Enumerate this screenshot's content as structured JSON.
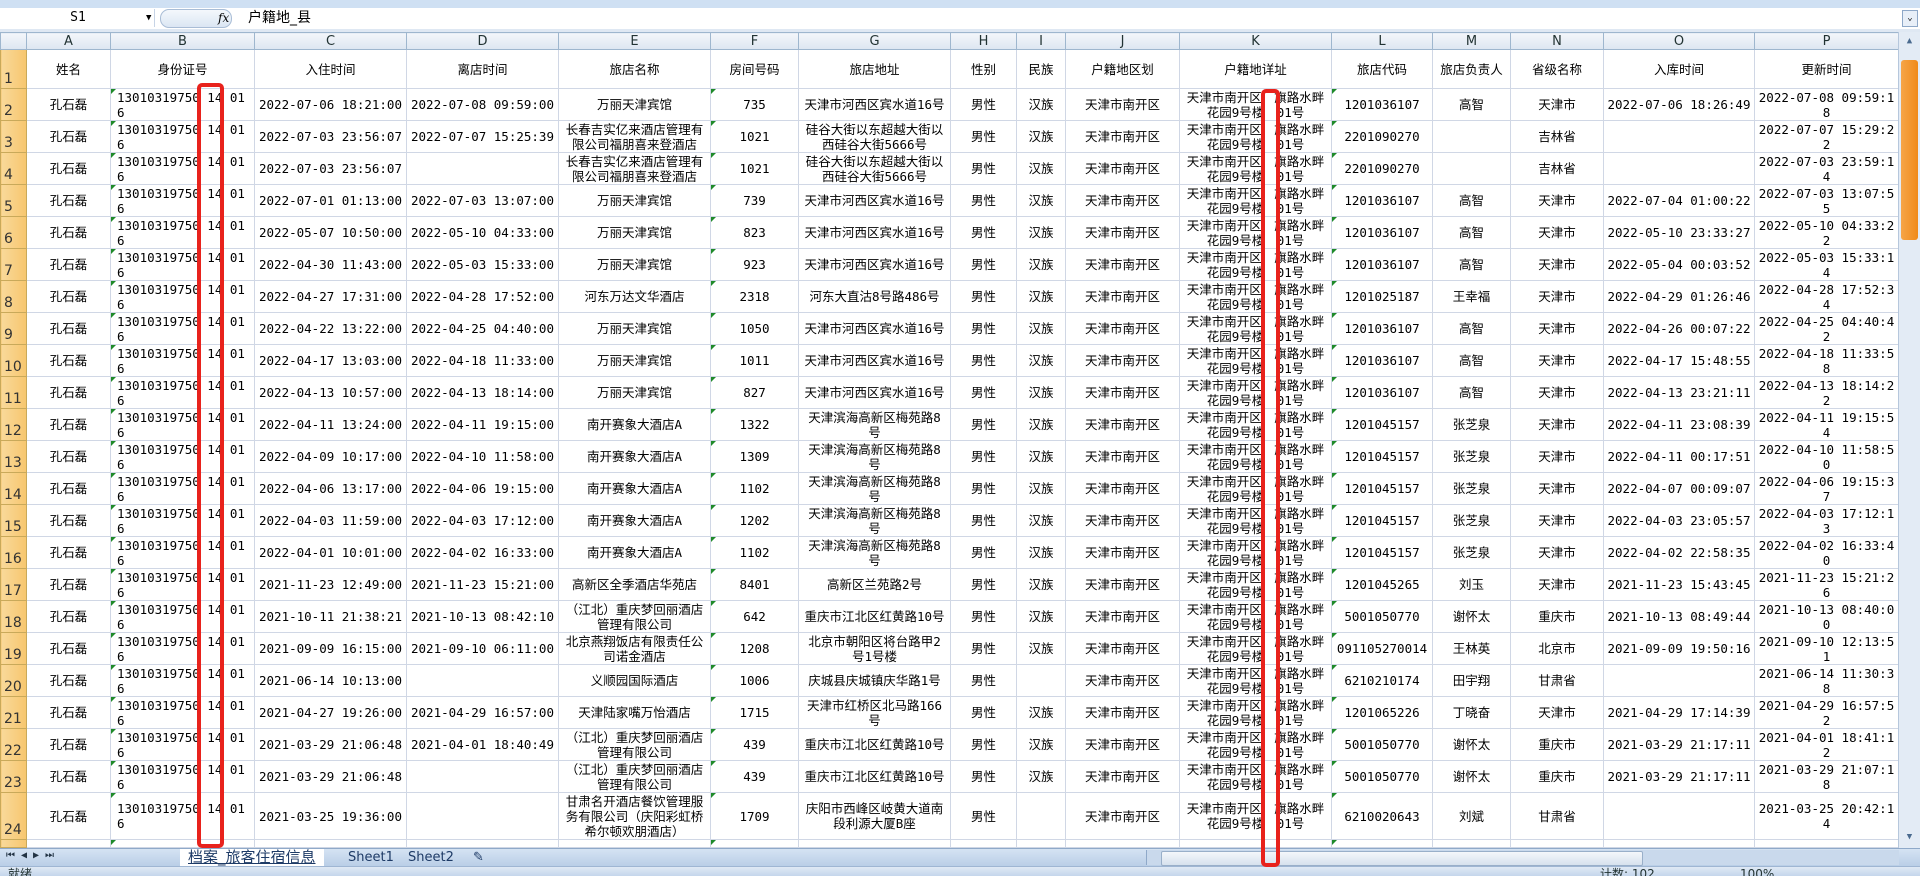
{
  "formula_bar": {
    "name_box": "S1",
    "fx": "fx",
    "formula": "户籍地_县"
  },
  "columns": [
    "A",
    "B",
    "C",
    "D",
    "E",
    "F",
    "G",
    "H",
    "I",
    "J",
    "K",
    "L",
    "M",
    "N",
    "O",
    "P"
  ],
  "headers": [
    "姓名",
    "身份证号",
    "入住时间",
    "离店时间",
    "旅店名称",
    "房间号码",
    "旅店地址",
    "性别",
    "民族",
    "户籍地区划",
    "户籍地详址",
    "旅店代码",
    "旅店负责人",
    "省级名称",
    "入库时间",
    "更新时间"
  ],
  "rows": [
    [
      "孔石磊",
      "13010319750 14 016",
      "2022-07-06 18:21:00",
      "2022-07-08 09:59:00",
      "万丽天津宾馆",
      "735",
      "天津市河西区宾水道16号",
      "男性",
      "汉族",
      "天津市南开区",
      "天津市南开区　旗路水畔花园9号楼　01号",
      "1201036107",
      "高智",
      "天津市",
      "2022-07-06 18:26:49",
      "2022-07-08 09:59:18"
    ],
    [
      "孔石磊",
      "13010319750 14 016",
      "2022-07-03 23:56:07",
      "2022-07-07 15:25:39",
      "长春吉实亿来酒店管理有限公司福朋喜来登酒店",
      "1021",
      "硅谷大街以东超越大街以西硅谷大街5666号",
      "男性",
      "汉族",
      "天津市南开区",
      "天津市南开区　旗路水畔花园9号楼　01号",
      "2201090270",
      "",
      "吉林省",
      "",
      "2022-07-07 15:29:22"
    ],
    [
      "孔石磊",
      "13010319750 14 016",
      "2022-07-03 23:56:07",
      "",
      "长春吉实亿来酒店管理有限公司福朋喜来登酒店",
      "1021",
      "硅谷大街以东超越大街以西硅谷大街5666号",
      "男性",
      "汉族",
      "天津市南开区",
      "天津市南开区　旗路水畔花园9号楼　01号",
      "2201090270",
      "",
      "吉林省",
      "",
      "2022-07-03 23:59:14"
    ],
    [
      "孔石磊",
      "13010319750 14 016",
      "2022-07-01 01:13:00",
      "2022-07-03 13:07:00",
      "万丽天津宾馆",
      "739",
      "天津市河西区宾水道16号",
      "男性",
      "汉族",
      "天津市南开区",
      "天津市南开区　旗路水畔花园9号楼　01号",
      "1201036107",
      "高智",
      "天津市",
      "2022-07-04 01:00:22",
      "2022-07-03 13:07:55"
    ],
    [
      "孔石磊",
      "13010319750 14 016",
      "2022-05-07 10:50:00",
      "2022-05-10 04:33:00",
      "万丽天津宾馆",
      "823",
      "天津市河西区宾水道16号",
      "男性",
      "汉族",
      "天津市南开区",
      "天津市南开区　旗路水畔花园9号楼　01号",
      "1201036107",
      "高智",
      "天津市",
      "2022-05-10 23:33:27",
      "2022-05-10 04:33:22"
    ],
    [
      "孔石磊",
      "13010319750 14 016",
      "2022-04-30 11:43:00",
      "2022-05-03 15:33:00",
      "万丽天津宾馆",
      "923",
      "天津市河西区宾水道16号",
      "男性",
      "汉族",
      "天津市南开区",
      "天津市南开区　旗路水畔花园9号楼　01号",
      "1201036107",
      "高智",
      "天津市",
      "2022-05-04 00:03:52",
      "2022-05-03 15:33:14"
    ],
    [
      "孔石磊",
      "13010319750 14 016",
      "2022-04-27 17:31:00",
      "2022-04-28 17:52:00",
      "河东万达文华酒店",
      "2318",
      "河东大直沽8号路486号",
      "男性",
      "汉族",
      "天津市南开区",
      "天津市南开区　旗路水畔花园9号楼　01号",
      "1201025187",
      "王幸福",
      "天津市",
      "2022-04-29 01:26:46",
      "2022-04-28 17:52:34"
    ],
    [
      "孔石磊",
      "13010319750 14 016",
      "2022-04-22 13:22:00",
      "2022-04-25 04:40:00",
      "万丽天津宾馆",
      "1050",
      "天津市河西区宾水道16号",
      "男性",
      "汉族",
      "天津市南开区",
      "天津市南开区　旗路水畔花园9号楼　01号",
      "1201036107",
      "高智",
      "天津市",
      "2022-04-26 00:07:22",
      "2022-04-25 04:40:42"
    ],
    [
      "孔石磊",
      "13010319750 14 016",
      "2022-04-17 13:03:00",
      "2022-04-18 11:33:00",
      "万丽天津宾馆",
      "1011",
      "天津市河西区宾水道16号",
      "男性",
      "汉族",
      "天津市南开区",
      "天津市南开区　旗路水畔花园9号楼　01号",
      "1201036107",
      "高智",
      "天津市",
      "2022-04-17 15:48:55",
      "2022-04-18 11:33:58"
    ],
    [
      "孔石磊",
      "13010319750 14 016",
      "2022-04-13 10:57:00",
      "2022-04-13 18:14:00",
      "万丽天津宾馆",
      "827",
      "天津市河西区宾水道16号",
      "男性",
      "汉族",
      "天津市南开区",
      "天津市南开区　旗路水畔花园9号楼　01号",
      "1201036107",
      "高智",
      "天津市",
      "2022-04-13 23:21:11",
      "2022-04-13 18:14:22"
    ],
    [
      "孔石磊",
      "13010319750 14 016",
      "2022-04-11 13:24:00",
      "2022-04-11 19:15:00",
      "南开赛象大酒店A",
      "1322",
      "天津滨海高新区梅苑路8号",
      "男性",
      "汉族",
      "天津市南开区",
      "天津市南开区　旗路水畔花园9号楼　01号",
      "1201045157",
      "张芝泉",
      "天津市",
      "2022-04-11 23:08:39",
      "2022-04-11 19:15:54"
    ],
    [
      "孔石磊",
      "13010319750 14 016",
      "2022-04-09 10:17:00",
      "2022-04-10 11:58:00",
      "南开赛象大酒店A",
      "1309",
      "天津滨海高新区梅苑路8号",
      "男性",
      "汉族",
      "天津市南开区",
      "天津市南开区　旗路水畔花园9号楼　01号",
      "1201045157",
      "张芝泉",
      "天津市",
      "2022-04-11 00:17:51",
      "2022-04-10 11:58:50"
    ],
    [
      "孔石磊",
      "13010319750 14 016",
      "2022-04-06 13:17:00",
      "2022-04-06 19:15:00",
      "南开赛象大酒店A",
      "1102",
      "天津滨海高新区梅苑路8号",
      "男性",
      "汉族",
      "天津市南开区",
      "天津市南开区　旗路水畔花园9号楼　01号",
      "1201045157",
      "张芝泉",
      "天津市",
      "2022-04-07 00:09:07",
      "2022-04-06 19:15:37"
    ],
    [
      "孔石磊",
      "13010319750 14 016",
      "2022-04-03 11:59:00",
      "2022-04-03 17:12:00",
      "南开赛象大酒店A",
      "1202",
      "天津滨海高新区梅苑路8号",
      "男性",
      "汉族",
      "天津市南开区",
      "天津市南开区　旗路水畔花园9号楼　01号",
      "1201045157",
      "张芝泉",
      "天津市",
      "2022-04-03 23:05:57",
      "2022-04-03 17:12:13"
    ],
    [
      "孔石磊",
      "13010319750 14 016",
      "2022-04-01 10:01:00",
      "2022-04-02 16:33:00",
      "南开赛象大酒店A",
      "1102",
      "天津滨海高新区梅苑路8号",
      "男性",
      "汉族",
      "天津市南开区",
      "天津市南开区　旗路水畔花园9号楼　01号",
      "1201045157",
      "张芝泉",
      "天津市",
      "2022-04-02 22:58:35",
      "2022-04-02 16:33:40"
    ],
    [
      "孔石磊",
      "13010319750 14 016",
      "2021-11-23 12:49:00",
      "2021-11-23 15:21:00",
      "高新区全季酒店华苑店",
      "8401",
      "高新区兰苑路2号",
      "男性",
      "汉族",
      "天津市南开区",
      "天津市南开区　旗路水畔花园9号楼　01号",
      "1201045265",
      "刘玉",
      "天津市",
      "2021-11-23 15:43:45",
      "2021-11-23 15:21:26"
    ],
    [
      "孔石磊",
      "13010319750 14 016",
      "2021-10-11 21:38:21",
      "2021-10-13 08:42:10",
      "（江北）重庆梦回丽酒店管理有限公司",
      "642",
      "重庆市江北区红黄路10号",
      "男性",
      "汉族",
      "天津市南开区",
      "天津市南开区　旗路水畔花园9号楼　01号",
      "5001050770",
      "谢怀太",
      "重庆市",
      "2021-10-13 08:49:44",
      "2021-10-13 08:40:00"
    ],
    [
      "孔石磊",
      "13010319750 14 016",
      "2021-09-09 16:15:00",
      "2021-09-10 06:11:00",
      "北京燕翔饭店有限责任公司诺金酒店",
      "1208",
      "北京市朝阳区将台路甲2号1号楼",
      "男性",
      "汉族",
      "天津市南开区",
      "天津市南开区　旗路水畔花园9号楼　01号",
      "091105270014",
      "王林英",
      "北京市",
      "2021-09-09 19:50:16",
      "2021-09-10 12:13:51"
    ],
    [
      "孔石磊",
      "13010319750 14 016",
      "2021-06-14 10:13:00",
      "",
      "义顺园国际酒店",
      "1006",
      "庆城县庆城镇庆华路1号",
      "男性",
      "",
      "天津市南开区",
      "天津市南开区　旗路水畔花园9号楼　01号",
      "6210210174",
      "田宇翔",
      "甘肃省",
      "",
      "2021-06-14 11:30:38"
    ],
    [
      "孔石磊",
      "13010319750 14 016",
      "2021-04-27 19:26:00",
      "2021-04-29 16:57:00",
      "天津陆家嘴万怡酒店",
      "1715",
      "天津市红桥区北马路166号",
      "男性",
      "汉族",
      "天津市南开区",
      "天津市南开区　旗路水畔花园9号楼　01号",
      "1201065226",
      "丁晓奋",
      "天津市",
      "2021-04-29 17:14:39",
      "2021-04-29 16:57:52"
    ],
    [
      "孔石磊",
      "13010319750 14 016",
      "2021-03-29 21:06:48",
      "2021-04-01 18:40:49",
      "（江北）重庆梦回丽酒店管理有限公司",
      "439",
      "重庆市江北区红黄路10号",
      "男性",
      "汉族",
      "天津市南开区",
      "天津市南开区　旗路水畔花园9号楼　01号",
      "5001050770",
      "谢怀太",
      "重庆市",
      "2021-03-29 21:17:11",
      "2021-04-01 18:41:12"
    ],
    [
      "孔石磊",
      "13010319750 14 016",
      "2021-03-29 21:06:48",
      "",
      "（江北）重庆梦回丽酒店管理有限公司",
      "439",
      "重庆市江北区红黄路10号",
      "男性",
      "汉族",
      "天津市南开区",
      "天津市南开区　旗路水畔花园9号楼　01号",
      "5001050770",
      "谢怀太",
      "重庆市",
      "2021-03-29 21:17:11",
      "2021-03-29 21:07:18"
    ],
    [
      "孔石磊",
      "13010319750 14 016",
      "2021-03-25 19:36:00",
      "",
      "甘肃名开酒店餐饮管理服务有限公司（庆阳彩虹桥希尔顿欢朋酒店）",
      "1709",
      "庆阳市西峰区岐黄大道南段利源大厦B座",
      "男性",
      "",
      "天津市南开区",
      "天津市南开区　旗路水畔花园9号楼　01号",
      "6210020643",
      "刘斌",
      "甘肃省",
      "",
      "2021-03-25 20:42:14"
    ]
  ],
  "sheet_tabs": [
    "档案_旅客住宿信息",
    "Sheet1",
    "Sheet2"
  ],
  "status": {
    "ready": "就绪",
    "count": "计数: 102",
    "zoom": "100%"
  },
  "highlight_color": "#e8221c"
}
